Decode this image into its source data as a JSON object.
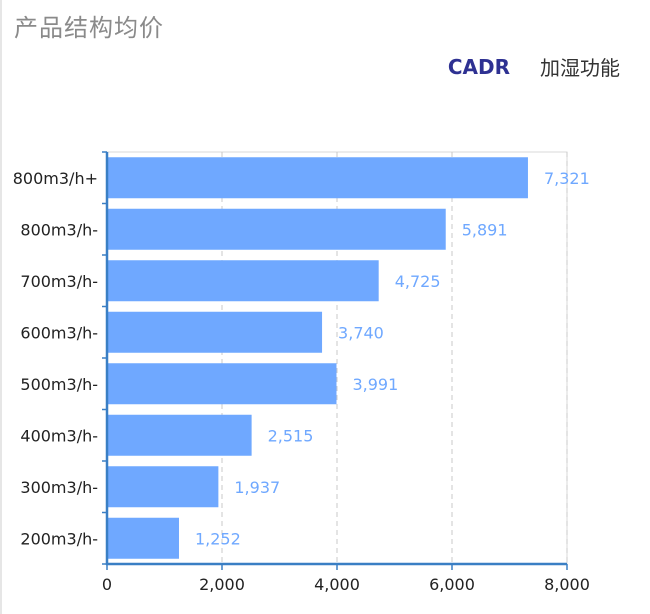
{
  "header": {
    "title": "产品结构均价"
  },
  "tabs": [
    {
      "label": "CADR",
      "active": true
    },
    {
      "label": "加湿功能",
      "active": false
    }
  ],
  "colors": {
    "bar": "#6fa8ff",
    "value_label": "#6fa8ff",
    "axis": "#3a7fc4",
    "grid": "#c8c8c8",
    "active_tab": "#2e3192"
  },
  "chart_data": {
    "type": "bar",
    "orientation": "horizontal",
    "categories": [
      "800m3/h+",
      "800m3/h-",
      "700m3/h-",
      "600m3/h-",
      "500m3/h-",
      "400m3/h-",
      "300m3/h-",
      "200m3/h-"
    ],
    "values": [
      7321,
      5891,
      4725,
      3740,
      3991,
      2515,
      1937,
      1252
    ],
    "value_labels": [
      "7,321",
      "5,891",
      "4,725",
      "3,740",
      "3,991",
      "2,515",
      "1,937",
      "1,252"
    ],
    "xlim": [
      0,
      8000
    ],
    "xticks": [
      0,
      2000,
      4000,
      6000,
      8000
    ],
    "xtick_labels": [
      "0",
      "2,000",
      "4,000",
      "6,000",
      "8,000"
    ],
    "grid": "vertical dashed"
  }
}
